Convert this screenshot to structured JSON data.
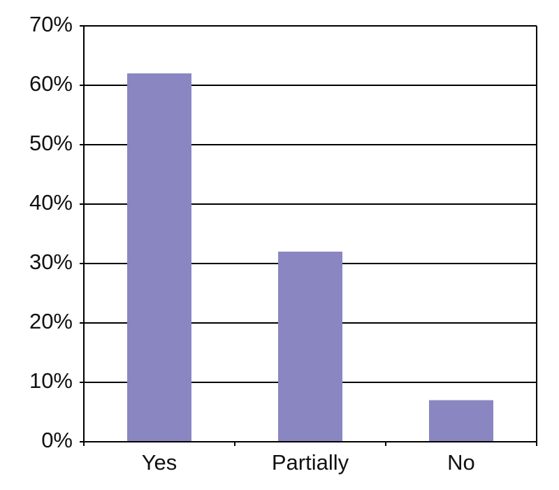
{
  "chart_data": {
    "type": "bar",
    "categories": [
      "Yes",
      "Partially",
      "No"
    ],
    "values": [
      62,
      32,
      7
    ],
    "color": "#8a86c2",
    "ylim": [
      0,
      70
    ],
    "yticks": [
      {
        "value": 0,
        "label": "0%"
      },
      {
        "value": 10,
        "label": "10%"
      },
      {
        "value": 20,
        "label": "20%"
      },
      {
        "value": 30,
        "label": "30%"
      },
      {
        "value": 40,
        "label": "40%"
      },
      {
        "value": 50,
        "label": "50%"
      },
      {
        "value": 60,
        "label": "60%"
      },
      {
        "value": 70,
        "label": "70%"
      }
    ],
    "grid": true
  }
}
